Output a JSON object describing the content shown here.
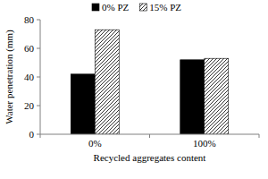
{
  "chart_data": {
    "type": "bar",
    "categories": [
      "0%",
      "100%"
    ],
    "series": [
      {
        "name": "0% PZ",
        "color": "#000000",
        "values": [
          42,
          52
        ]
      },
      {
        "name": "15% PZ",
        "color": "#000000",
        "values": [
          73,
          53
        ]
      }
    ],
    "x_label": "Recycled aggregates content",
    "y_label": "Water penetration (mm)",
    "ylim": [
      0,
      80
    ],
    "yticks": [
      0,
      20,
      40,
      60,
      80
    ],
    "grid": false,
    "legend": "top"
  }
}
